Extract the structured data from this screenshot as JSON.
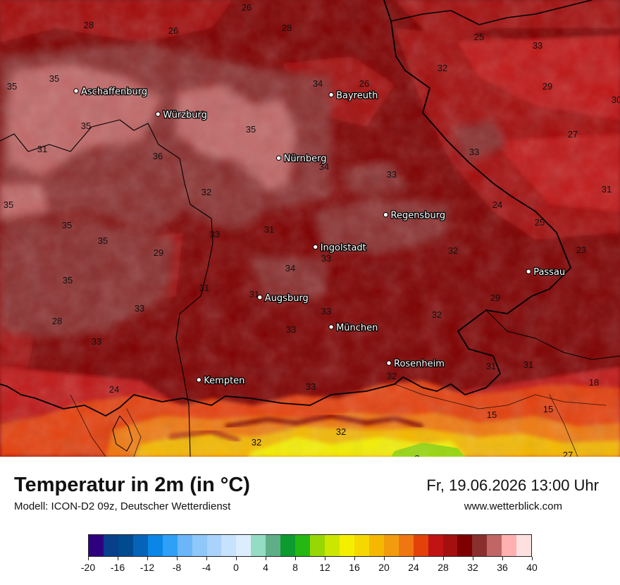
{
  "map": {
    "cities": [
      {
        "name": "Aschaffenburg",
        "lon": 9.15,
        "lat": 49.97
      },
      {
        "name": "Würzburg",
        "lon": 9.93,
        "lat": 49.79
      },
      {
        "name": "Bayreuth",
        "lon": 11.58,
        "lat": 49.94
      },
      {
        "name": "Nürnberg",
        "lon": 11.08,
        "lat": 49.45
      },
      {
        "name": "Regensburg",
        "lon": 12.1,
        "lat": 49.01
      },
      {
        "name": "Ingolstadt",
        "lon": 11.43,
        "lat": 48.76
      },
      {
        "name": "Passau",
        "lon": 13.46,
        "lat": 48.57
      },
      {
        "name": "Augsburg",
        "lon": 10.9,
        "lat": 48.37
      },
      {
        "name": "München",
        "lon": 11.58,
        "lat": 48.14
      },
      {
        "name": "Rosenheim",
        "lon": 12.13,
        "lat": 47.86
      },
      {
        "name": "Kempten",
        "lon": 10.32,
        "lat": 47.73
      }
    ],
    "value_labels": [
      "26",
      "28",
      "26",
      "28",
      "25",
      "33",
      "32",
      "29",
      "30",
      "27",
      "35",
      "35",
      "34",
      "26",
      "36",
      "35",
      "35",
      "31",
      "36",
      "34",
      "33",
      "33",
      "32",
      "24",
      "31",
      "35",
      "25",
      "35",
      "35",
      "33",
      "31",
      "23",
      "29",
      "34",
      "33",
      "32",
      "35",
      "31",
      "33",
      "31",
      "29",
      "28",
      "33",
      "33",
      "32",
      "33",
      "31",
      "31",
      "24",
      "32",
      "18",
      "33",
      "15",
      "15",
      "32",
      "32",
      "8",
      "27"
    ]
  },
  "footer": {
    "title": "Temperatur in 2m (in °C)",
    "model": "Modell: ICON-D2 09z, Deutscher Wetterdienst",
    "datetime": "Fr, 19.06.2026 13:00 Uhr",
    "website": "www.wetterblick.com"
  },
  "legend": {
    "tick_labels": [
      "-20",
      "-16",
      "-12",
      "-8",
      "-4",
      "0",
      "4",
      "8",
      "12",
      "16",
      "20",
      "24",
      "28",
      "32",
      "36",
      "40"
    ],
    "min": -20,
    "max": 40,
    "step": 2,
    "colors": [
      "#2e007f",
      "#073f8c",
      "#004a8f",
      "#0563b8",
      "#0a86e6",
      "#2fa0f7",
      "#6bb6f8",
      "#8fc7fa",
      "#a9d3fb",
      "#c7e2fc",
      "#dceefd",
      "#94dcc3",
      "#5eaf88",
      "#0d9a2f",
      "#25b813",
      "#96d704",
      "#cce600",
      "#f4ef00",
      "#f5d800",
      "#f4b800",
      "#f29b0f",
      "#ef7711",
      "#e4410a",
      "#c01414",
      "#a40f0f",
      "#7f0000",
      "#8b2e2e",
      "#c06666",
      "#ffb0b0",
      "#ffe0e0"
    ]
  }
}
